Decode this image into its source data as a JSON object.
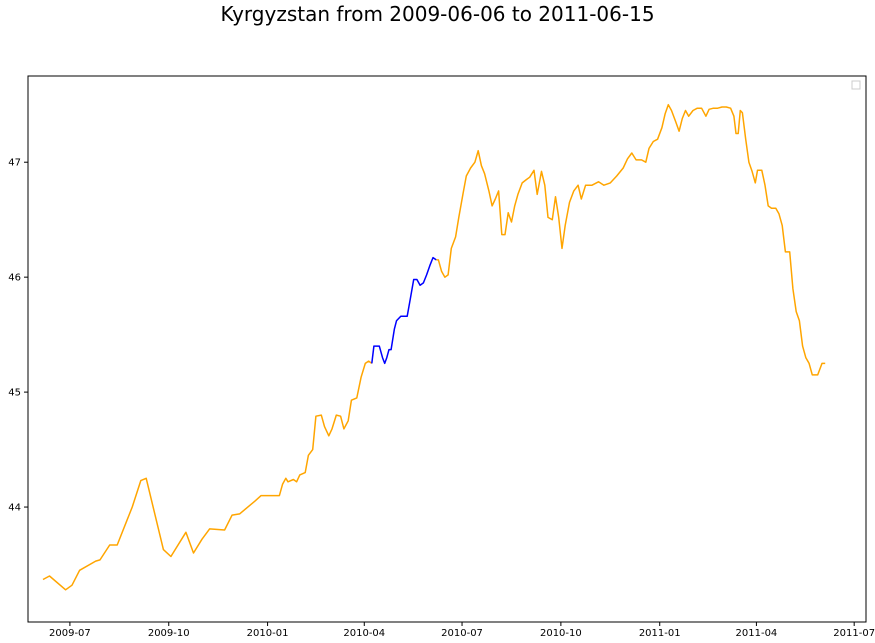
{
  "chart_data": {
    "type": "line",
    "title": "Kyrgyzstan from 2009-06-06 to 2011-06-15",
    "xlabel": "",
    "ylabel": "",
    "x_tick_labels": [
      "2009-07",
      "2009-10",
      "2010-01",
      "2010-04",
      "2010-07",
      "2010-10",
      "2011-01",
      "2011-04",
      "2011-07"
    ],
    "x_ticks": [
      "2009-07-01",
      "2009-10-01",
      "2010-01-01",
      "2010-04-01",
      "2010-07-01",
      "2010-10-01",
      "2011-01-01",
      "2011-04-01",
      "2011-07-01"
    ],
    "y_ticks": [
      44,
      45,
      46,
      47
    ],
    "xlim": [
      "2009-05-23",
      "2011-07-12"
    ],
    "ylim": [
      43.0,
      47.75
    ],
    "grid": false,
    "legend": {
      "placement": "top-right",
      "entries": []
    },
    "series": [
      {
        "color": "#FFA500",
        "points": [
          [
            "2009-06-06",
            43.37
          ],
          [
            "2009-06-12",
            43.4
          ],
          [
            "2009-06-27",
            43.28
          ],
          [
            "2009-07-03",
            43.32
          ],
          [
            "2009-07-10",
            43.45
          ],
          [
            "2009-07-25",
            43.53
          ],
          [
            "2009-07-29",
            43.54
          ],
          [
            "2009-08-07",
            43.67
          ],
          [
            "2009-08-14",
            43.67
          ],
          [
            "2009-08-28",
            44.0
          ],
          [
            "2009-09-05",
            44.23
          ],
          [
            "2009-09-10",
            44.25
          ],
          [
            "2009-09-26",
            43.63
          ],
          [
            "2009-10-03",
            43.57
          ],
          [
            "2009-10-17",
            43.78
          ],
          [
            "2009-10-24",
            43.6
          ],
          [
            "2009-11-01",
            43.72
          ],
          [
            "2009-11-08",
            43.81
          ],
          [
            "2009-11-22",
            43.8
          ],
          [
            "2009-11-29",
            43.93
          ],
          [
            "2009-12-06",
            43.94
          ],
          [
            "2009-12-20",
            44.05
          ],
          [
            "2009-12-26",
            44.1
          ],
          [
            "2010-01-12",
            44.1
          ],
          [
            "2010-01-15",
            44.2
          ],
          [
            "2010-01-18",
            44.25
          ],
          [
            "2010-01-20",
            44.22
          ],
          [
            "2010-01-25",
            44.24
          ],
          [
            "2010-01-28",
            44.22
          ],
          [
            "2010-01-31",
            44.28
          ],
          [
            "2010-02-05",
            44.3
          ],
          [
            "2010-02-08",
            44.45
          ],
          [
            "2010-02-12",
            44.5
          ],
          [
            "2010-02-15",
            44.79
          ],
          [
            "2010-02-20",
            44.8
          ],
          [
            "2010-02-23",
            44.7
          ],
          [
            "2010-02-27",
            44.62
          ],
          [
            "2010-03-02",
            44.68
          ],
          [
            "2010-03-06",
            44.8
          ],
          [
            "2010-03-10",
            44.79
          ],
          [
            "2010-03-13",
            44.68
          ],
          [
            "2010-03-17",
            44.75
          ],
          [
            "2010-03-20",
            44.93
          ],
          [
            "2010-03-25",
            44.95
          ],
          [
            "2010-03-29",
            45.13
          ],
          [
            "2010-04-02",
            45.25
          ],
          [
            "2010-04-05",
            45.27
          ],
          [
            "2010-04-08",
            45.25
          ]
        ]
      },
      {
        "color": "#0000FF",
        "points": [
          [
            "2010-04-08",
            45.25
          ],
          [
            "2010-04-10",
            45.4
          ],
          [
            "2010-04-15",
            45.4
          ],
          [
            "2010-04-18",
            45.3
          ],
          [
            "2010-04-20",
            45.25
          ],
          [
            "2010-04-22",
            45.3
          ],
          [
            "2010-04-24",
            45.37
          ],
          [
            "2010-04-26",
            45.37
          ],
          [
            "2010-04-29",
            45.55
          ],
          [
            "2010-05-01",
            45.62
          ],
          [
            "2010-05-05",
            45.66
          ],
          [
            "2010-05-11",
            45.66
          ],
          [
            "2010-05-14",
            45.82
          ],
          [
            "2010-05-17",
            45.98
          ],
          [
            "2010-05-20",
            45.98
          ],
          [
            "2010-05-23",
            45.93
          ],
          [
            "2010-05-26",
            45.95
          ],
          [
            "2010-05-29",
            46.02
          ],
          [
            "2010-06-01",
            46.1
          ],
          [
            "2010-06-04",
            46.17
          ],
          [
            "2010-06-07",
            46.15
          ]
        ]
      },
      {
        "color": "#FFA500",
        "points": [
          [
            "2010-06-07",
            46.15
          ],
          [
            "2010-06-09",
            46.15
          ],
          [
            "2010-06-12",
            46.05
          ],
          [
            "2010-06-15",
            46.0
          ],
          [
            "2010-06-18",
            46.02
          ],
          [
            "2010-06-21",
            46.25
          ],
          [
            "2010-06-25",
            46.35
          ],
          [
            "2010-06-28",
            46.52
          ],
          [
            "2010-07-02",
            46.73
          ],
          [
            "2010-07-05",
            46.88
          ],
          [
            "2010-07-09",
            46.95
          ],
          [
            "2010-07-13",
            47.0
          ],
          [
            "2010-07-16",
            47.1
          ],
          [
            "2010-07-19",
            46.97
          ],
          [
            "2010-07-22",
            46.9
          ],
          [
            "2010-07-26",
            46.75
          ],
          [
            "2010-07-29",
            46.62
          ],
          [
            "2010-08-01",
            46.68
          ],
          [
            "2010-08-04",
            46.75
          ],
          [
            "2010-08-07",
            46.37
          ],
          [
            "2010-08-10",
            46.37
          ],
          [
            "2010-08-13",
            46.56
          ],
          [
            "2010-08-16",
            46.48
          ],
          [
            "2010-08-19",
            46.62
          ],
          [
            "2010-08-22",
            46.72
          ],
          [
            "2010-08-26",
            46.82
          ],
          [
            "2010-08-30",
            46.85
          ],
          [
            "2010-09-02",
            46.87
          ],
          [
            "2010-09-06",
            46.93
          ],
          [
            "2010-09-09",
            46.72
          ],
          [
            "2010-09-13",
            46.92
          ],
          [
            "2010-09-16",
            46.8
          ],
          [
            "2010-09-19",
            46.52
          ],
          [
            "2010-09-23",
            46.5
          ],
          [
            "2010-09-26",
            46.7
          ],
          [
            "2010-09-29",
            46.52
          ],
          [
            "2010-10-02",
            46.25
          ],
          [
            "2010-10-05",
            46.45
          ],
          [
            "2010-10-09",
            46.65
          ],
          [
            "2010-10-13",
            46.75
          ],
          [
            "2010-10-17",
            46.8
          ],
          [
            "2010-10-20",
            46.68
          ],
          [
            "2010-10-24",
            46.8
          ],
          [
            "2010-10-30",
            46.8
          ],
          [
            "2010-11-05",
            46.83
          ],
          [
            "2010-11-10",
            46.8
          ],
          [
            "2010-11-16",
            46.82
          ],
          [
            "2010-11-22",
            46.88
          ],
          [
            "2010-11-28",
            46.95
          ],
          [
            "2010-12-02",
            47.03
          ],
          [
            "2010-12-06",
            47.08
          ],
          [
            "2010-12-10",
            47.02
          ],
          [
            "2010-12-15",
            47.02
          ],
          [
            "2010-12-19",
            47.0
          ],
          [
            "2010-12-22",
            47.12
          ],
          [
            "2010-12-26",
            47.18
          ],
          [
            "2010-12-30",
            47.2
          ],
          [
            "2011-01-03",
            47.3
          ],
          [
            "2011-01-06",
            47.42
          ],
          [
            "2011-01-09",
            47.5
          ],
          [
            "2011-01-12",
            47.45
          ],
          [
            "2011-01-16",
            47.35
          ],
          [
            "2011-01-19",
            47.27
          ],
          [
            "2011-01-22",
            47.38
          ],
          [
            "2011-01-25",
            47.45
          ],
          [
            "2011-01-28",
            47.4
          ],
          [
            "2011-02-01",
            47.45
          ],
          [
            "2011-02-05",
            47.47
          ],
          [
            "2011-02-09",
            47.47
          ],
          [
            "2011-02-13",
            47.4
          ],
          [
            "2011-02-16",
            47.46
          ],
          [
            "2011-02-20",
            47.47
          ],
          [
            "2011-02-24",
            47.47
          ],
          [
            "2011-02-28",
            47.48
          ],
          [
            "2011-03-04",
            47.48
          ],
          [
            "2011-03-08",
            47.47
          ],
          [
            "2011-03-11",
            47.4
          ],
          [
            "2011-03-13",
            47.25
          ],
          [
            "2011-03-15",
            47.25
          ],
          [
            "2011-03-17",
            47.45
          ],
          [
            "2011-03-19",
            47.43
          ],
          [
            "2011-03-22",
            47.2
          ],
          [
            "2011-03-25",
            47.0
          ],
          [
            "2011-03-28",
            46.92
          ],
          [
            "2011-03-31",
            46.82
          ],
          [
            "2011-04-02",
            46.93
          ],
          [
            "2011-04-06",
            46.93
          ],
          [
            "2011-04-09",
            46.8
          ],
          [
            "2011-04-12",
            46.62
          ],
          [
            "2011-04-15",
            46.6
          ],
          [
            "2011-04-19",
            46.6
          ],
          [
            "2011-04-22",
            46.55
          ],
          [
            "2011-04-25",
            46.45
          ],
          [
            "2011-04-28",
            46.22
          ],
          [
            "2011-05-02",
            46.22
          ],
          [
            "2011-05-05",
            45.9
          ],
          [
            "2011-05-08",
            45.7
          ],
          [
            "2011-05-11",
            45.62
          ],
          [
            "2011-05-14",
            45.4
          ],
          [
            "2011-05-17",
            45.3
          ],
          [
            "2011-05-20",
            45.25
          ],
          [
            "2011-05-23",
            45.15
          ],
          [
            "2011-05-28",
            45.15
          ],
          [
            "2011-06-01",
            45.25
          ],
          [
            "2011-06-04",
            45.25
          ]
        ]
      }
    ]
  }
}
